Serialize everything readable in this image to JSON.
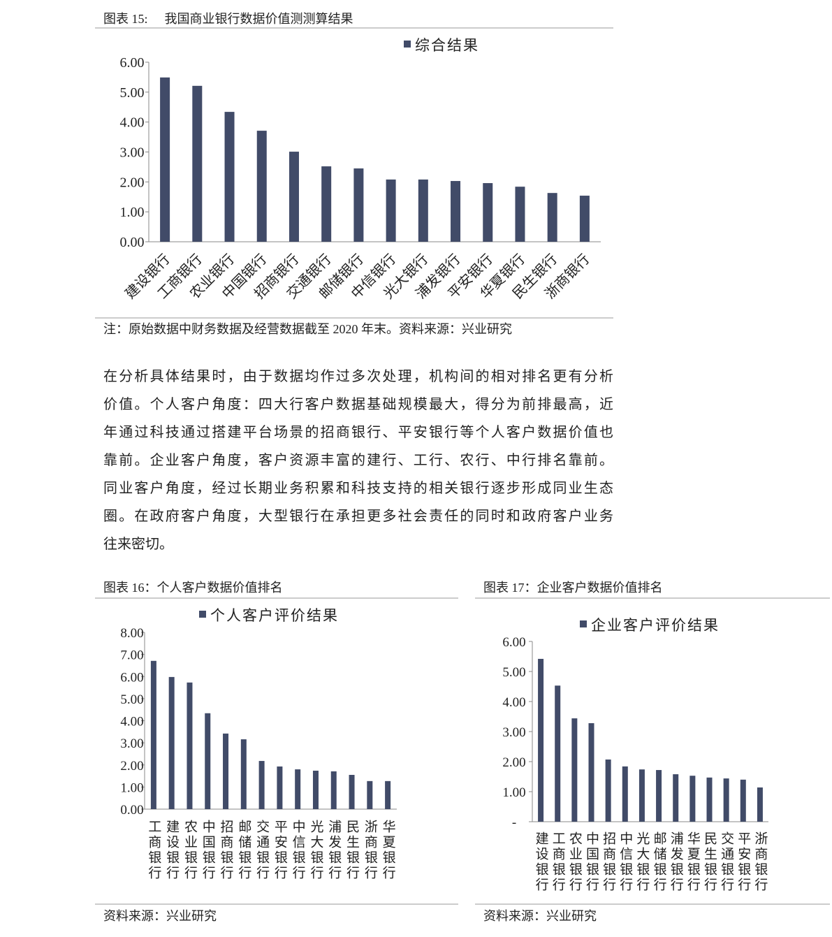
{
  "chart_data": [
    {
      "type": "bar",
      "caption_label": "图表 15:",
      "title": "我国商业银行数据价值测测算结果",
      "categories": [
        "建设银行",
        "工商银行",
        "农业银行",
        "中国银行",
        "招商银行",
        "交通银行",
        "邮储银行",
        "中信银行",
        "光大银行",
        "浦发银行",
        "平安银行",
        "华夏银行",
        "民生银行",
        "浙商银行"
      ],
      "series": [
        {
          "name": "综合结果",
          "color": "#414b68",
          "values": [
            5.49,
            5.21,
            4.34,
            3.71,
            3.01,
            2.52,
            2.45,
            2.08,
            2.08,
            2.03,
            1.96,
            1.84,
            1.63,
            1.54
          ]
        }
      ],
      "ylim": [
        0,
        6
      ],
      "yticks": [
        {
          "value": 0,
          "label": "0.00"
        },
        {
          "value": 1,
          "label": "1.00"
        },
        {
          "value": 2,
          "label": "2.00"
        },
        {
          "value": 3,
          "label": "3.00"
        },
        {
          "value": 4,
          "label": "4.00"
        },
        {
          "value": 5,
          "label": "5.00"
        },
        {
          "value": 6,
          "label": "6.00"
        }
      ],
      "source": "注：原始数据中财务数据及经营数据截至 2020 年末。资料来源：兴业研究"
    },
    {
      "type": "bar",
      "caption_label": "图表 16：",
      "title": "个人客户数据价值排名",
      "categories": [
        "工商银行",
        "建设银行",
        "农业银行",
        "中国银行",
        "招商银行",
        "邮储银行",
        "交通银行",
        "平安银行",
        "中信银行",
        "光大银行",
        "浦发银行",
        "民生银行",
        "浙商银行",
        "华夏银行"
      ],
      "series": [
        {
          "name": "个人客户评价结果",
          "color": "#414b68",
          "values": [
            6.71,
            5.98,
            5.73,
            4.34,
            3.42,
            3.16,
            2.18,
            1.93,
            1.8,
            1.74,
            1.71,
            1.55,
            1.27,
            1.27
          ]
        }
      ],
      "ylim": [
        0,
        8
      ],
      "yticks": [
        {
          "value": 0,
          "label": "0.00"
        },
        {
          "value": 1,
          "label": "1.00"
        },
        {
          "value": 2,
          "label": "2.00"
        },
        {
          "value": 3,
          "label": "3.00"
        },
        {
          "value": 4,
          "label": "4.00"
        },
        {
          "value": 5,
          "label": "5.00"
        },
        {
          "value": 6,
          "label": "6.00"
        },
        {
          "value": 7,
          "label": "7.00"
        },
        {
          "value": 8,
          "label": "8.00"
        }
      ],
      "source": "资料来源：兴业研究"
    },
    {
      "type": "bar",
      "caption_label": "图表 17：",
      "title": "企业客户数据价值排名",
      "categories": [
        "建设银行",
        "工商银行",
        "农业银行",
        "中国银行",
        "招商银行",
        "中信银行",
        "光大银行",
        "邮储银行",
        "浦发银行",
        "华夏银行",
        "民生银行",
        "交通银行",
        "平安银行",
        "浙商银行"
      ],
      "series": [
        {
          "name": "企业客户评价结果",
          "color": "#414b68",
          "values": [
            5.42,
            4.53,
            3.44,
            3.28,
            2.07,
            1.84,
            1.74,
            1.72,
            1.58,
            1.53,
            1.47,
            1.44,
            1.4,
            1.14
          ]
        }
      ],
      "ylim": [
        0,
        6
      ],
      "yticks": [
        {
          "value": 0,
          "label": "-"
        },
        {
          "value": 1,
          "label": "1.00"
        },
        {
          "value": 2,
          "label": "2.00"
        },
        {
          "value": 3,
          "label": "3.00"
        },
        {
          "value": 4,
          "label": "4.00"
        },
        {
          "value": 5,
          "label": "5.00"
        },
        {
          "value": 6,
          "label": "6.00"
        }
      ],
      "source": "资料来源：兴业研究"
    }
  ],
  "paragraph": [
    "在分析具体结果时，由于数据均作过多次处理，机构间的相对排名更有分析",
    "价值。个人客户角度：四大行客户数据基础规模最大，得分为前排最高，近",
    "年通过科技通过搭建平台场景的招商银行、平安银行等个人客户数据价值也",
    "靠前。企业客户角度，客户资源丰富的建行、工行、农行、中行排名靠前。",
    "同业客户角度，经过长期业务积累和科技支持的相关银行逐步形成同业生态",
    "圈。在政府客户角度，大型银行在承担更多社会责任的同时和政府客户业务",
    "往来密切。"
  ]
}
